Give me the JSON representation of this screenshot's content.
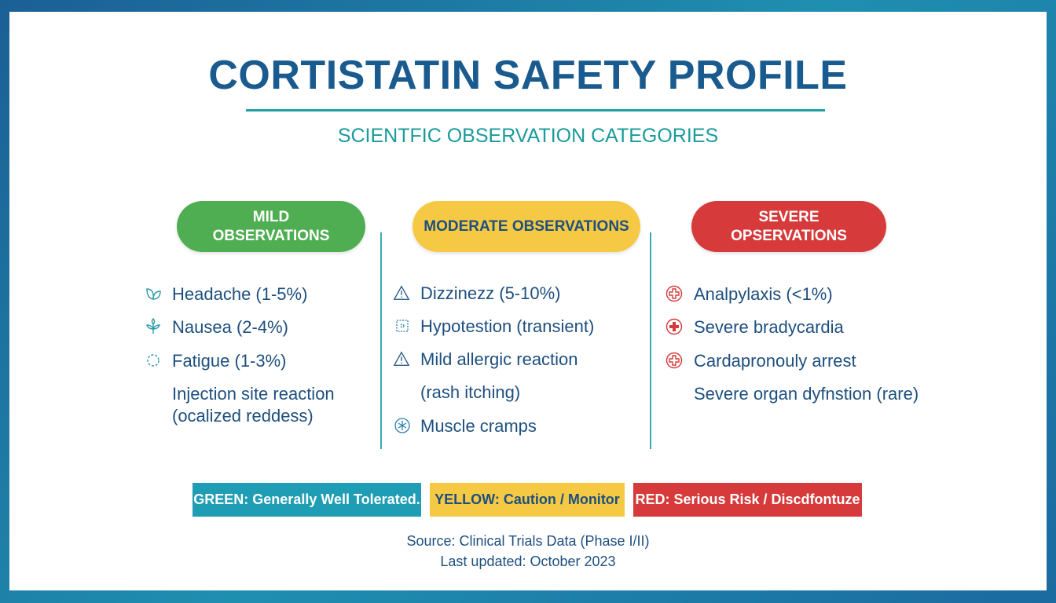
{
  "title": "CORTISTATIN SAFETY PROFILE",
  "subtitle": "SCIENTFIC OBSERVATION CATEGORIES",
  "colors": {
    "mild": "#4fae52",
    "moderate": "#f6c944",
    "severe": "#d63a3a",
    "title": "#1a5b8f",
    "teal": "#1a9a9a"
  },
  "columns": [
    {
      "heading": "MILD OBSERVATIONS",
      "items": [
        {
          "icon": "leaf-icon",
          "text": "Headache (1-5%)"
        },
        {
          "icon": "plant-icon",
          "text": "Nausea (2-4%)"
        },
        {
          "icon": "gear-icon",
          "text": "Fatigue (1-3%)"
        },
        {
          "icon": "",
          "text": "Injection site reaction"
        },
        {
          "icon": "",
          "text": "(ocalized reddess)"
        }
      ]
    },
    {
      "heading": "MODERATE OBSERVATIONS",
      "items": [
        {
          "icon": "warning-icon",
          "text": "Dizzinezz (5-10%)"
        },
        {
          "icon": "puzzle-icon",
          "text": "Hypotestion (transient)"
        },
        {
          "icon": "warning-icon",
          "text": "Mild allergic reaction"
        },
        {
          "icon": "",
          "text": "(rash itching)"
        },
        {
          "icon": "snowflake-icon",
          "text": "Muscle cramps"
        }
      ]
    },
    {
      "heading": "SEVERE OPSERVATIONS",
      "items": [
        {
          "icon": "medical-cross-icon",
          "text": "Analpylaxis (<1%)"
        },
        {
          "icon": "medical-cross-filled-icon",
          "text": "Severe bradycardia"
        },
        {
          "icon": "medical-cross-icon",
          "text": "Cardapronouly arrest"
        },
        {
          "icon": "",
          "text": "Severe organ dyfnstion (rare)"
        }
      ]
    }
  ],
  "legend": [
    {
      "text": "GREEN: Generally Well Tolerated.",
      "color": "#1f9db5"
    },
    {
      "text": "YELLOW: Caution / Monitor",
      "color": "#f6c944"
    },
    {
      "text": "RED: Serious Risk / Discdfontuze",
      "color": "#d63a3a"
    }
  ],
  "footer": {
    "source": "Source: Clinical Trials Data (Phase I/II)",
    "updated": "Last updated: October 2023"
  }
}
